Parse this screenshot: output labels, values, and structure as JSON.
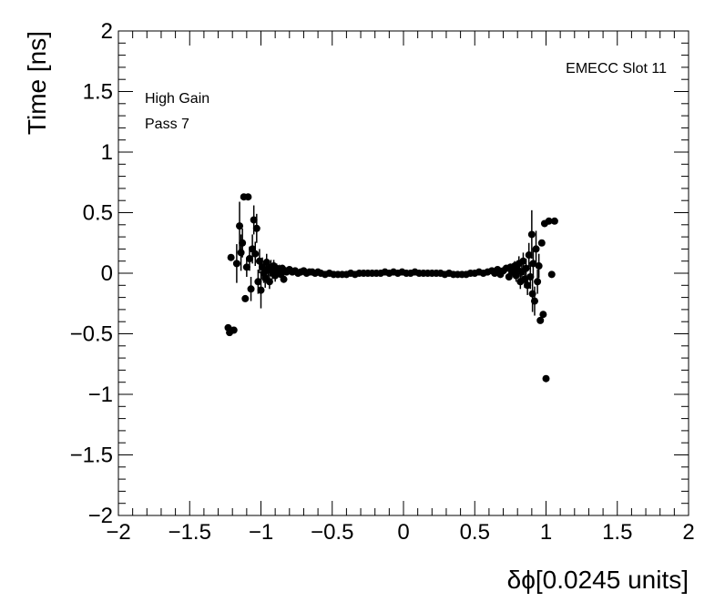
{
  "chart_data": {
    "type": "scatter",
    "xlabel": "δϕ[0.0245 units]",
    "ylabel": "Time [ns]",
    "xlim": [
      -2,
      2
    ],
    "ylim": [
      -2,
      2
    ],
    "x_ticks": [
      "−2",
      "−1.5",
      "−1",
      "−0.5",
      "0",
      "0.5",
      "1",
      "1.5",
      "2"
    ],
    "y_ticks": [
      "−2",
      "−1.5",
      "−1",
      "−0.5",
      "0",
      "0.5",
      "1",
      "1.5",
      "2"
    ],
    "x_tick_values": [
      -2,
      -1.5,
      -1,
      -0.5,
      0,
      0.5,
      1,
      1.5,
      2
    ],
    "y_tick_values": [
      -2,
      -1.5,
      -1,
      -0.5,
      0,
      0.5,
      1,
      1.5,
      2
    ],
    "annotations": {
      "top_right": "EMECC Slot 11",
      "top_left_line1": "High Gain",
      "top_left_line2": "Pass 7"
    },
    "grid": false,
    "marker_color": "#000000",
    "points": [
      {
        "x": -1.23,
        "y": -0.45,
        "err": 0.0
      },
      {
        "x": -1.22,
        "y": -0.49,
        "err": 0.0
      },
      {
        "x": -1.19,
        "y": -0.47,
        "err": 0.0
      },
      {
        "x": -1.21,
        "y": 0.13,
        "err": 0.0
      },
      {
        "x": -1.17,
        "y": 0.08,
        "err": 0.16
      },
      {
        "x": -1.15,
        "y": 0.39,
        "err": 0.2
      },
      {
        "x": -1.14,
        "y": 0.17,
        "err": 0.15
      },
      {
        "x": -1.13,
        "y": 0.25,
        "err": 0.12
      },
      {
        "x": -1.12,
        "y": 0.63,
        "err": 0.0
      },
      {
        "x": -1.11,
        "y": -0.21,
        "err": 0.0
      },
      {
        "x": -1.1,
        "y": 0.05,
        "err": 0.08
      },
      {
        "x": -1.09,
        "y": 0.63,
        "err": 0.0
      },
      {
        "x": -1.08,
        "y": 0.12,
        "err": 0.1
      },
      {
        "x": -1.07,
        "y": -0.13,
        "err": 0.1
      },
      {
        "x": -1.06,
        "y": 0.2,
        "err": 0.12
      },
      {
        "x": -1.05,
        "y": 0.44,
        "err": 0.12
      },
      {
        "x": -1.04,
        "y": 0.16,
        "err": 0.1
      },
      {
        "x": -1.03,
        "y": 0.37,
        "err": 0.12
      },
      {
        "x": -1.02,
        "y": -0.07,
        "err": 0.1
      },
      {
        "x": -1.01,
        "y": 0.1,
        "err": 0.1
      },
      {
        "x": -1.0,
        "y": -0.14,
        "err": 0.15
      },
      {
        "x": -0.99,
        "y": 0.05,
        "err": 0.08
      },
      {
        "x": -0.98,
        "y": 0.0,
        "err": 0.08
      },
      {
        "x": -0.97,
        "y": -0.04,
        "err": 0.08
      },
      {
        "x": -0.96,
        "y": 0.09,
        "err": 0.07
      },
      {
        "x": -0.95,
        "y": 0.03,
        "err": 0.06
      },
      {
        "x": -0.94,
        "y": -0.07,
        "err": 0.06
      },
      {
        "x": -0.93,
        "y": 0.05,
        "err": 0.06
      },
      {
        "x": -0.92,
        "y": 0.0,
        "err": 0.05
      },
      {
        "x": -0.91,
        "y": 0.06,
        "err": 0.05
      },
      {
        "x": -0.9,
        "y": -0.02,
        "err": 0.05
      },
      {
        "x": -0.89,
        "y": 0.04,
        "err": 0.04
      },
      {
        "x": -0.88,
        "y": 0.01,
        "err": 0.04
      },
      {
        "x": -0.87,
        "y": 0.03,
        "err": 0.04
      },
      {
        "x": -0.86,
        "y": -0.01,
        "err": 0.03
      },
      {
        "x": -0.85,
        "y": 0.04,
        "err": 0.03
      },
      {
        "x": -0.84,
        "y": -0.05,
        "err": 0.03
      },
      {
        "x": -0.83,
        "y": 0.02,
        "err": 0.03
      },
      {
        "x": -0.82,
        "y": 0.01,
        "err": 0.02
      },
      {
        "x": -0.8,
        "y": 0.03,
        "err": 0.02
      },
      {
        "x": -0.78,
        "y": 0.01,
        "err": 0.02
      },
      {
        "x": -0.76,
        "y": 0.02,
        "err": 0.02
      },
      {
        "x": -0.74,
        "y": 0.0,
        "err": 0.02
      },
      {
        "x": -0.72,
        "y": 0.01,
        "err": 0.01
      },
      {
        "x": -0.7,
        "y": 0.02,
        "err": 0.01
      },
      {
        "x": -0.68,
        "y": 0.0,
        "err": 0.01
      },
      {
        "x": -0.66,
        "y": 0.01,
        "err": 0.01
      },
      {
        "x": -0.64,
        "y": 0.01,
        "err": 0.01
      },
      {
        "x": -0.62,
        "y": 0.0,
        "err": 0.01
      },
      {
        "x": -0.6,
        "y": 0.01,
        "err": 0.01
      },
      {
        "x": -0.58,
        "y": 0.0,
        "err": 0.01
      },
      {
        "x": -0.55,
        "y": -0.01,
        "err": 0.0
      },
      {
        "x": -0.52,
        "y": 0.0,
        "err": 0.0
      },
      {
        "x": -0.49,
        "y": -0.01,
        "err": 0.0
      },
      {
        "x": -0.46,
        "y": -0.01,
        "err": 0.0
      },
      {
        "x": -0.43,
        "y": -0.01,
        "err": 0.0
      },
      {
        "x": -0.4,
        "y": -0.01,
        "err": 0.0
      },
      {
        "x": -0.37,
        "y": 0.0,
        "err": 0.0
      },
      {
        "x": -0.34,
        "y": -0.01,
        "err": 0.0
      },
      {
        "x": -0.31,
        "y": 0.0,
        "err": 0.0
      },
      {
        "x": -0.28,
        "y": 0.0,
        "err": 0.0
      },
      {
        "x": -0.25,
        "y": 0.0,
        "err": 0.0
      },
      {
        "x": -0.22,
        "y": 0.0,
        "err": 0.0
      },
      {
        "x": -0.19,
        "y": 0.0,
        "err": 0.0
      },
      {
        "x": -0.16,
        "y": 0.0,
        "err": 0.0
      },
      {
        "x": -0.13,
        "y": 0.01,
        "err": 0.0
      },
      {
        "x": -0.1,
        "y": 0.0,
        "err": 0.0
      },
      {
        "x": -0.07,
        "y": 0.01,
        "err": 0.0
      },
      {
        "x": -0.04,
        "y": 0.0,
        "err": 0.0
      },
      {
        "x": -0.01,
        "y": 0.01,
        "err": 0.0
      },
      {
        "x": 0.02,
        "y": 0.0,
        "err": 0.0
      },
      {
        "x": 0.05,
        "y": 0.0,
        "err": 0.0
      },
      {
        "x": 0.08,
        "y": 0.01,
        "err": 0.0
      },
      {
        "x": 0.11,
        "y": 0.0,
        "err": 0.0
      },
      {
        "x": 0.14,
        "y": 0.0,
        "err": 0.0
      },
      {
        "x": 0.17,
        "y": 0.0,
        "err": 0.0
      },
      {
        "x": 0.2,
        "y": 0.0,
        "err": 0.0
      },
      {
        "x": 0.23,
        "y": 0.0,
        "err": 0.0
      },
      {
        "x": 0.26,
        "y": 0.0,
        "err": 0.0
      },
      {
        "x": 0.29,
        "y": -0.01,
        "err": 0.0
      },
      {
        "x": 0.32,
        "y": 0.0,
        "err": 0.0
      },
      {
        "x": 0.35,
        "y": -0.01,
        "err": 0.0
      },
      {
        "x": 0.38,
        "y": -0.01,
        "err": 0.0
      },
      {
        "x": 0.41,
        "y": -0.01,
        "err": 0.0
      },
      {
        "x": 0.44,
        "y": -0.01,
        "err": 0.0
      },
      {
        "x": 0.47,
        "y": 0.0,
        "err": 0.0
      },
      {
        "x": 0.5,
        "y": 0.0,
        "err": 0.0
      },
      {
        "x": 0.53,
        "y": 0.01,
        "err": 0.0
      },
      {
        "x": 0.56,
        "y": 0.0,
        "err": 0.01
      },
      {
        "x": 0.59,
        "y": 0.01,
        "err": 0.01
      },
      {
        "x": 0.62,
        "y": 0.02,
        "err": 0.01
      },
      {
        "x": 0.64,
        "y": 0.0,
        "err": 0.01
      },
      {
        "x": 0.66,
        "y": 0.03,
        "err": 0.02
      },
      {
        "x": 0.68,
        "y": -0.01,
        "err": 0.02
      },
      {
        "x": 0.7,
        "y": 0.02,
        "err": 0.02
      },
      {
        "x": 0.72,
        "y": 0.04,
        "err": 0.03
      },
      {
        "x": 0.74,
        "y": -0.03,
        "err": 0.03
      },
      {
        "x": 0.75,
        "y": 0.05,
        "err": 0.03
      },
      {
        "x": 0.76,
        "y": 0.01,
        "err": 0.04
      },
      {
        "x": 0.78,
        "y": 0.06,
        "err": 0.04
      },
      {
        "x": 0.79,
        "y": -0.02,
        "err": 0.05
      },
      {
        "x": 0.8,
        "y": 0.03,
        "err": 0.05
      },
      {
        "x": 0.81,
        "y": 0.08,
        "err": 0.06
      },
      {
        "x": 0.82,
        "y": -0.07,
        "err": 0.06
      },
      {
        "x": 0.83,
        "y": 0.01,
        "err": 0.06
      },
      {
        "x": 0.84,
        "y": 0.1,
        "err": 0.07
      },
      {
        "x": 0.85,
        "y": -0.05,
        "err": 0.07
      },
      {
        "x": 0.86,
        "y": 0.04,
        "err": 0.08
      },
      {
        "x": 0.87,
        "y": -0.1,
        "err": 0.08
      },
      {
        "x": 0.88,
        "y": 0.15,
        "err": 0.1
      },
      {
        "x": 0.89,
        "y": -0.03,
        "err": 0.1
      },
      {
        "x": 0.9,
        "y": 0.32,
        "err": 0.2
      },
      {
        "x": 0.905,
        "y": -0.17,
        "err": 0.15
      },
      {
        "x": 0.91,
        "y": 0.08,
        "err": 0.12
      },
      {
        "x": 0.92,
        "y": -0.23,
        "err": 0.12
      },
      {
        "x": 0.93,
        "y": 0.2,
        "err": 0.15
      },
      {
        "x": 0.94,
        "y": -0.07,
        "err": 0.1
      },
      {
        "x": 0.95,
        "y": 0.06,
        "err": 0.1
      },
      {
        "x": 0.96,
        "y": -0.39,
        "err": 0.0
      },
      {
        "x": 0.97,
        "y": 0.25,
        "err": 0.0
      },
      {
        "x": 0.98,
        "y": -0.34,
        "err": 0.0
      },
      {
        "x": 0.99,
        "y": 0.41,
        "err": 0.0
      },
      {
        "x": 1.0,
        "y": -0.87,
        "err": 0.0
      },
      {
        "x": 1.02,
        "y": 0.43,
        "err": 0.0
      },
      {
        "x": 1.04,
        "y": -0.01,
        "err": 0.0
      },
      {
        "x": 1.06,
        "y": 0.43,
        "err": 0.0
      }
    ]
  }
}
